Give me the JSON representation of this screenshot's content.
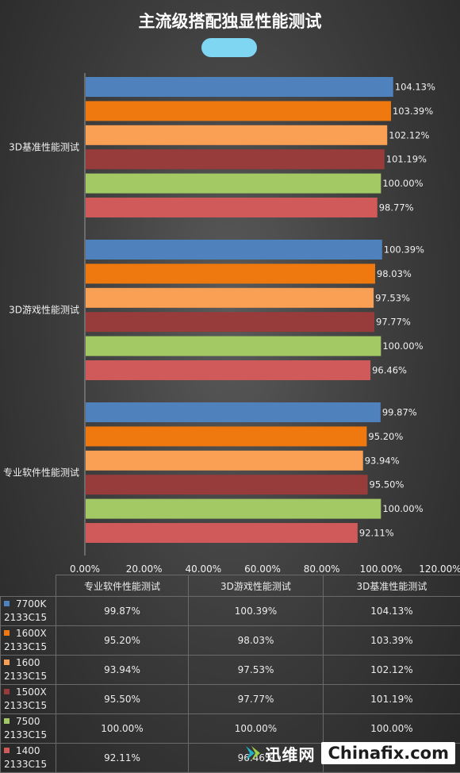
{
  "chart_data": {
    "type": "bar",
    "orientation": "horizontal",
    "title": "主流级搭配独显性能测试",
    "categories": [
      "专业软件性能测试",
      "3D游戏性能测试",
      "3D基准性能测试"
    ],
    "series": [
      {
        "name": "7700K 2133C15",
        "line1": "7700K",
        "line2": "2133C15",
        "color": "#4f81bd",
        "values": [
          99.87,
          100.39,
          104.13
        ],
        "labels": [
          "99.87%",
          "100.39%",
          "104.13%"
        ]
      },
      {
        "name": "1600X 2133C15",
        "line1": "1600X",
        "line2": "2133C15",
        "color": "#f0790f",
        "values": [
          95.2,
          98.03,
          103.39
        ],
        "labels": [
          "95.20%",
          "98.03%",
          "103.39%"
        ]
      },
      {
        "name": "1600 2133C15",
        "line1": "1600",
        "line2": "2133C15",
        "color": "#f9a055",
        "values": [
          93.94,
          97.53,
          102.12
        ],
        "labels": [
          "93.94%",
          "97.53%",
          "102.12%"
        ]
      },
      {
        "name": "1500X 2133C15",
        "line1": "1500X",
        "line2": "2133C15",
        "color": "#983b3b",
        "values": [
          95.5,
          97.77,
          101.19
        ],
        "labels": [
          "95.50%",
          "97.77%",
          "101.19%"
        ]
      },
      {
        "name": "7500 2133C15",
        "line1": "7500",
        "line2": "2133C15",
        "color": "#a3c964",
        "values": [
          100.0,
          100.0,
          100.0
        ],
        "labels": [
          "100.00%",
          "100.00%",
          "100.00%"
        ]
      },
      {
        "name": "1400 2133C15",
        "line1": "1400",
        "line2": "2133C15",
        "color": "#d05a5a",
        "values": [
          92.11,
          96.46,
          98.77
        ],
        "labels": [
          "92.11%",
          "96.46%",
          "98.77%"
        ]
      }
    ],
    "xlim": [
      0,
      120
    ],
    "xticks": [
      0,
      20,
      40,
      60,
      80,
      100,
      120
    ],
    "xtick_labels": [
      "0.00%",
      "20.00%",
      "40.00%",
      "60.00%",
      "80.00%",
      "100.00%",
      "120.00%"
    ],
    "grid": false,
    "legend": "data-table-below",
    "table": {
      "columns": [
        "专业软件性能测试",
        "3D游戏性能测试",
        "3D基准性能测试"
      ]
    }
  },
  "watermark": {
    "cn": "迅维网",
    "en": "Chinafix.com"
  }
}
